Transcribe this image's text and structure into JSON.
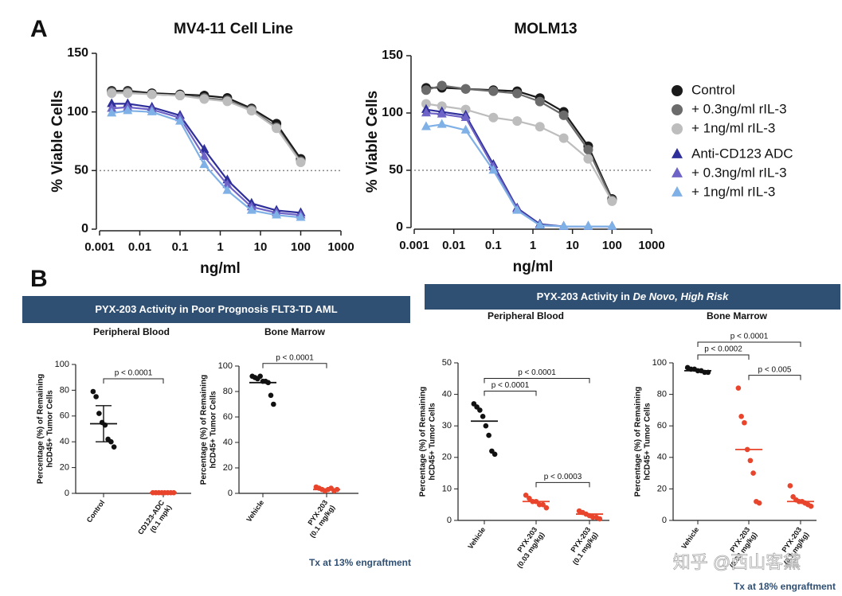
{
  "watermark": "知乎 @西山客黛",
  "chart_data": [
    {
      "type": "line",
      "panel": "A",
      "title": "MV4-11 Cell Line",
      "xlabel": "ng/ml",
      "ylabel": "% Viable Cells",
      "xscale": "log",
      "xlim": [
        0.001,
        1000
      ],
      "xticks": [
        0.001,
        0.01,
        0.1,
        1,
        10,
        100,
        1000
      ],
      "ylim": [
        0,
        150
      ],
      "yticks": [
        0,
        50,
        100,
        150
      ],
      "reference_line": 50,
      "legend": true,
      "x": [
        0.002,
        0.005,
        0.02,
        0.1,
        0.4,
        1.5,
        6,
        25,
        100
      ],
      "series": [
        {
          "name": "Control",
          "color": "#1a1a1a",
          "marker": "circle",
          "values": [
            118,
            118,
            116,
            115,
            114,
            112,
            103,
            90,
            60
          ]
        },
        {
          "name": "+ 0.3ng/ml rIL-3",
          "color": "#6b6b6b",
          "marker": "circle",
          "values": [
            117,
            117,
            115,
            114,
            112,
            110,
            102,
            87,
            58
          ]
        },
        {
          "name": "+ 1ng/ml rIL-3",
          "color": "#bdbdbd",
          "marker": "circle",
          "values": [
            116,
            116,
            115,
            114,
            111,
            109,
            101,
            86,
            57
          ]
        },
        {
          "name": "Anti-CD123 ADC",
          "color": "#2e2f9a",
          "marker": "triangle",
          "values": [
            107,
            107,
            104,
            97,
            68,
            42,
            22,
            16,
            14
          ]
        },
        {
          "name": "+ 0.3ng/ml rIL-3",
          "color": "#6e63c7",
          "marker": "triangle",
          "values": [
            103,
            104,
            102,
            95,
            62,
            38,
            19,
            14,
            12
          ]
        },
        {
          "name": "+ 1ng/ml rIL-3",
          "color": "#7fb0e6",
          "marker": "triangle",
          "values": [
            99,
            101,
            100,
            92,
            55,
            33,
            16,
            12,
            10
          ]
        }
      ]
    },
    {
      "type": "line",
      "title": "MOLM13",
      "xlabel": "ng/ml",
      "ylabel": "% Viable Cells",
      "xscale": "log",
      "xlim": [
        0.001,
        1000
      ],
      "xticks": [
        0.001,
        0.01,
        0.1,
        1,
        10,
        100,
        1000
      ],
      "ylim": [
        0,
        150
      ],
      "yticks": [
        0,
        50,
        100,
        150
      ],
      "reference_line": 50,
      "x": [
        0.002,
        0.005,
        0.02,
        0.1,
        0.4,
        1.5,
        6,
        25,
        100
      ],
      "series": [
        {
          "color": "#1a1a1a",
          "marker": "circle",
          "values": [
            122,
            122,
            121,
            120,
            119,
            113,
            101,
            71,
            25
          ]
        },
        {
          "color": "#6b6b6b",
          "marker": "circle",
          "values": [
            120,
            124,
            121,
            119,
            117,
            110,
            98,
            68,
            24
          ]
        },
        {
          "color": "#bdbdbd",
          "marker": "circle",
          "values": [
            108,
            106,
            103,
            96,
            93,
            88,
            78,
            60,
            23
          ]
        },
        {
          "color": "#2e2f9a",
          "marker": "triangle",
          "values": [
            103,
            101,
            98,
            55,
            17,
            3,
            1,
            1,
            1
          ]
        },
        {
          "color": "#6e63c7",
          "marker": "triangle",
          "values": [
            100,
            99,
            96,
            53,
            16,
            2,
            1,
            1,
            1
          ]
        },
        {
          "color": "#7fb0e6",
          "marker": "triangle",
          "values": [
            88,
            90,
            85,
            50,
            15,
            2,
            1,
            1,
            1
          ]
        }
      ]
    },
    {
      "type": "dot",
      "panel": "B",
      "banner": [
        "PYX-203 Activity in Poor Prognosis FLT3-TD AML"
      ],
      "title": "Peripheral Blood",
      "ylabel": [
        "Percentage (%) of Remaining",
        "hCD45+ Tumor Cells"
      ],
      "ylim": [
        0,
        100
      ],
      "yticks": [
        0,
        20,
        40,
        60,
        80,
        100
      ],
      "categories": [
        [
          "Control"
        ],
        [
          "CD123-ADC",
          "(0.1 mpk)"
        ]
      ],
      "groups": [
        {
          "color": "#111111",
          "values": [
            79,
            75,
            62,
            55,
            53,
            42,
            40,
            36
          ],
          "center": 54,
          "error": 14
        },
        {
          "color": "#e8452c",
          "values": [
            0.5,
            0.5,
            0.5,
            0.5,
            0.5,
            0.5,
            0.5,
            0.5
          ],
          "center": 0.5
        }
      ],
      "comparisons": [
        {
          "pair": [
            0,
            1
          ],
          "label": "p < 0.0001"
        }
      ]
    },
    {
      "type": "dot",
      "title": "Bone Marrow",
      "ylabel": [
        "Percentage (%) of Remaining",
        "hCD45+ Tumor Cells"
      ],
      "ylim": [
        0,
        100
      ],
      "yticks": [
        0,
        20,
        40,
        60,
        80,
        100
      ],
      "footnote": "Tx at 13% engraftment",
      "categories": [
        [
          "Vehicle"
        ],
        [
          "PYX-203",
          "(0.1 mg/kg)"
        ]
      ],
      "groups": [
        {
          "color": "#111111",
          "values": [
            92,
            91,
            90,
            92,
            88,
            88,
            87,
            77,
            70
          ],
          "center": 87
        },
        {
          "color": "#e8452c",
          "values": [
            5,
            4,
            3,
            2,
            3,
            4,
            2,
            3
          ],
          "center": 3
        }
      ],
      "comparisons": [
        {
          "pair": [
            0,
            1
          ],
          "label": "p < 0.0001"
        }
      ]
    },
    {
      "type": "dot",
      "banner": [
        "PYX-203 Activity in ",
        "De Novo, High Risk"
      ],
      "title": "Peripheral Blood",
      "ylabel": [
        "Percentage (%) of Remaining",
        "hCD45+ Tumor Cells"
      ],
      "ylim": [
        0,
        50
      ],
      "yticks": [
        0,
        10,
        20,
        30,
        40,
        50
      ],
      "categories": [
        [
          "Vehicle"
        ],
        [
          "PYX-203",
          "(0.03 mg/kg)"
        ],
        [
          "PYX-203",
          "(0.1 mg/kg)"
        ]
      ],
      "groups": [
        {
          "color": "#111111",
          "values": [
            37,
            36,
            35,
            33,
            30,
            27,
            22,
            21
          ],
          "center": 31.5
        },
        {
          "color": "#e8452c",
          "values": [
            8,
            7,
            6,
            6,
            5,
            5,
            4
          ],
          "center": 6
        },
        {
          "color": "#e8452c",
          "values": [
            3,
            2.5,
            2,
            1.5,
            1,
            1,
            0.5
          ],
          "center": 2
        }
      ],
      "comparisons": [
        {
          "pair": [
            0,
            1
          ],
          "label": "p < 0.0001"
        },
        {
          "pair": [
            0,
            2
          ],
          "label": "p < 0.0001"
        },
        {
          "pair": [
            1,
            2
          ],
          "label": "p < 0.0003"
        }
      ]
    },
    {
      "type": "dot",
      "title": "Bone Marrow",
      "ylabel": [
        "Percentage (%) of Remaining",
        "hCD45+ Tumor Cells"
      ],
      "ylim": [
        0,
        100
      ],
      "yticks": [
        0,
        20,
        40,
        60,
        80,
        100
      ],
      "footnote": "Tx at 18% engraftment",
      "categories": [
        [
          "Vehicle"
        ],
        [
          "PYX-203",
          "(0.03 mg/kg)"
        ],
        [
          "PYX-203",
          "(0.1 mg/kg)"
        ]
      ],
      "groups": [
        {
          "color": "#111111",
          "values": [
            97,
            96,
            96,
            95,
            95,
            94,
            94
          ],
          "center": 95
        },
        {
          "color": "#e8452c",
          "values": [
            84,
            66,
            62,
            45,
            38,
            30,
            12,
            11
          ],
          "center": 45
        },
        {
          "color": "#e8452c",
          "values": [
            22,
            15,
            13,
            12,
            12,
            11,
            10,
            9
          ],
          "center": 12
        }
      ],
      "comparisons": [
        {
          "pair": [
            0,
            1
          ],
          "label": "p < 0.0002"
        },
        {
          "pair": [
            1,
            2
          ],
          "label": "p < 0.005"
        },
        {
          "pair": [
            0,
            2
          ],
          "label": "p < 0.0001"
        }
      ]
    }
  ]
}
